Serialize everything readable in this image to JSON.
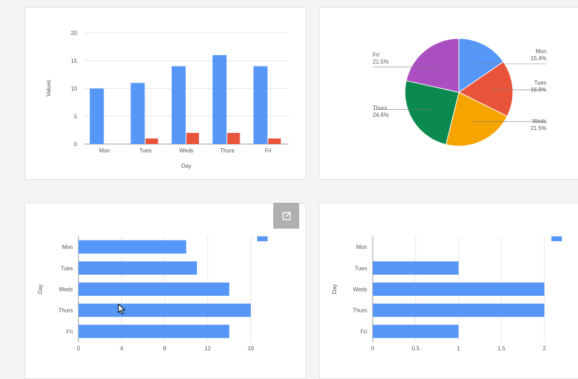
{
  "colors": {
    "blue": "#5596f6",
    "red": "#e8533a",
    "orange": "#f6a500",
    "green": "#0b8a4f",
    "purple": "#ab4fc0",
    "grid": "#e6e6e6",
    "axis": "#999999"
  },
  "chart_data": [
    {
      "type": "bar",
      "orientation": "vertical",
      "categories": [
        "Mon",
        "Tues",
        "Weds",
        "Thurs",
        "Fri"
      ],
      "series": [
        {
          "values": [
            10,
            11,
            14,
            16,
            14
          ],
          "color": "#5596f6"
        },
        {
          "values": [
            0,
            1,
            2,
            2,
            1
          ],
          "color": "#e8533a"
        }
      ],
      "xlabel": "Day",
      "ylabel": "Values",
      "ylim": [
        0,
        20
      ],
      "yticks": [
        0,
        5,
        10,
        15,
        20
      ],
      "grid": true
    },
    {
      "type": "pie",
      "categories": [
        "Mon",
        "Tues",
        "Weds",
        "Thurs",
        "Fri"
      ],
      "values": [
        15.4,
        16.9,
        21.5,
        24.6,
        21.5
      ],
      "labels": [
        "15.4%",
        "16.9%",
        "21.5%",
        "24.6%",
        "21.5%"
      ],
      "colors": [
        "#5596f6",
        "#e8533a",
        "#f6a500",
        "#0b8a4f",
        "#ab4fc0"
      ]
    },
    {
      "type": "bar",
      "orientation": "horizontal",
      "categories": [
        "Mon",
        "Tues",
        "Weds",
        "Thurs",
        "Fri"
      ],
      "values": [
        10,
        11,
        14,
        16,
        14
      ],
      "ylabel": "Day",
      "xlim": [
        0,
        16
      ],
      "xticks": [
        "0",
        "4",
        "8",
        "12",
        "16"
      ],
      "xtickvals": [
        0,
        4,
        8,
        12,
        16
      ],
      "grid": true,
      "legend": "top-right"
    },
    {
      "type": "bar",
      "orientation": "horizontal",
      "categories": [
        "Mon",
        "Tues",
        "Weds",
        "Thurs",
        "Fri"
      ],
      "values": [
        0,
        1,
        2,
        2,
        1
      ],
      "ylabel": "Day",
      "xlim": [
        0,
        2
      ],
      "xticks": [
        "0",
        "0.5",
        "1",
        "1.5",
        "2"
      ],
      "xtickvals": [
        0,
        0.5,
        1,
        1.5,
        2
      ],
      "grid": true,
      "legend": "top-right"
    }
  ],
  "icons": {
    "popout": "open-in-new-icon",
    "cursor": "mouse-pointer-icon"
  }
}
